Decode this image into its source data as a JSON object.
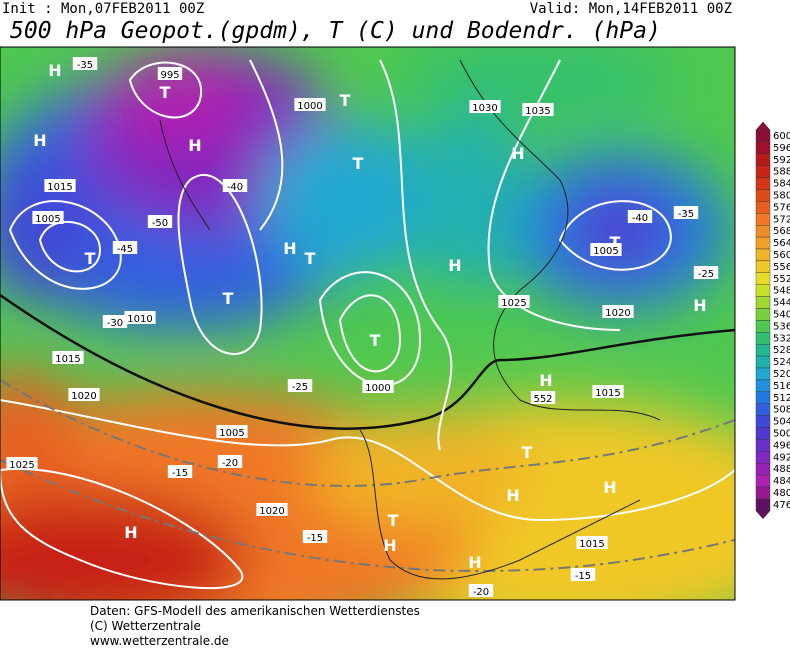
{
  "header": {
    "init": "Init : Mon,07FEB2011 00Z",
    "valid": "Valid: Mon,14FEB2011 00Z",
    "title": "500 hPa Geopot.(gpdm), T (C) und Bodendr. (hPa)"
  },
  "map_labels": [
    "H",
    "H",
    "T",
    "T",
    "H",
    "T",
    "T",
    "T",
    "H",
    "T",
    "T",
    "H",
    "H",
    "T",
    "H",
    "H",
    "T",
    "H",
    "H",
    "H",
    "H",
    "H",
    "T",
    "995",
    "1015",
    "1000",
    "1005",
    "1010",
    "1015",
    "1020",
    "1025",
    "-35",
    "-40",
    "-45",
    "-50",
    "-30",
    "-25",
    "-20",
    "-15",
    "1030",
    "1035",
    "-35",
    "-40",
    "1005",
    "1020",
    "1025",
    "-25",
    "1000",
    "1005",
    "1020",
    "-15",
    "-20",
    "-15",
    "1015",
    "1015",
    "552"
  ],
  "colorbar": {
    "ticks": [
      600,
      596,
      592,
      588,
      584,
      580,
      576,
      572,
      568,
      564,
      560,
      556,
      552,
      548,
      544,
      540,
      536,
      532,
      528,
      524,
      520,
      516,
      512,
      508,
      504,
      500,
      496,
      492,
      488,
      484,
      480,
      476
    ],
    "colors": [
      "#8c0d35",
      "#a0102a",
      "#b81a1a",
      "#c82418",
      "#d83418",
      "#e04a18",
      "#e86020",
      "#f07828",
      "#f08c28",
      "#f0a028",
      "#f0b428",
      "#f0c828",
      "#e8dc28",
      "#c8e028",
      "#a0d830",
      "#78d040",
      "#50c850",
      "#30c070",
      "#20b890",
      "#20b0b0",
      "#20a8d0",
      "#2090e0",
      "#2078e0",
      "#3060e0",
      "#4048d8",
      "#5038d0",
      "#6830c8",
      "#8028c0",
      "#9820b8",
      "#b020b0",
      "#981890",
      "#601060"
    ]
  },
  "footer": {
    "lines": [
      "Daten: GFS-Modell des amerikanischen Wetterdienstes",
      "(C) Wetterzentrale",
      "www.wetterzentrale.de"
    ]
  }
}
